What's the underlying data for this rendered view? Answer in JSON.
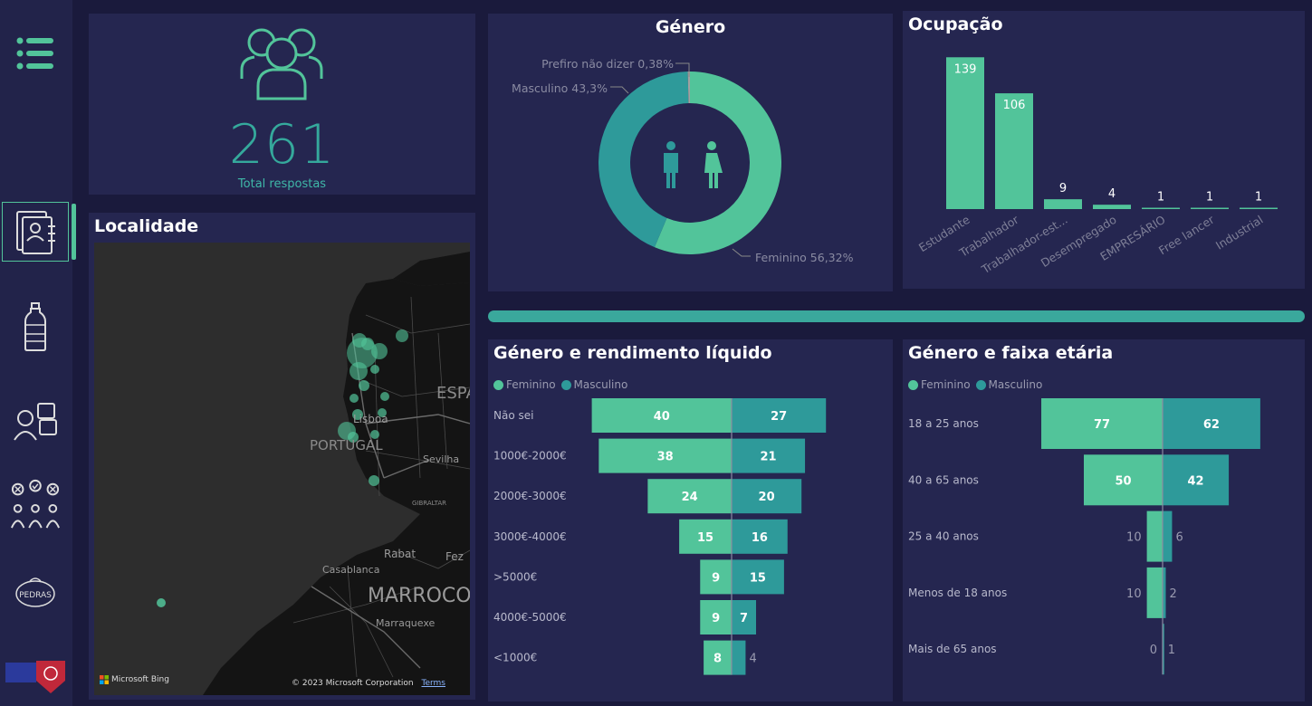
{
  "sidebar": {
    "items": [
      {
        "name": "menu"
      },
      {
        "name": "profile-report",
        "active": true
      },
      {
        "name": "bottle"
      },
      {
        "name": "feedback"
      },
      {
        "name": "voting"
      },
      {
        "name": "pedras-logo",
        "logo_text": "PEDRAS"
      },
      {
        "name": "brand-logo"
      }
    ]
  },
  "kpi": {
    "value": "261",
    "label": "Total respostas"
  },
  "localidade": {
    "title": "Localidade",
    "map_labels": [
      "ESPA",
      "Lisboa",
      "PORTUGAL",
      "Sevilha",
      "GIBRALTAR",
      "Rabat",
      "Fez",
      "Casablanca",
      "MARROCOS",
      "Marraquexe"
    ],
    "credit_bing": "Microsoft Bing",
    "credit_copyright": "© 2023 Microsoft Corporation",
    "credit_terms": "Terms"
  },
  "genero": {
    "title": "Género",
    "slices": [
      {
        "label": "Feminino 56,32%",
        "value": 56.32,
        "color": "#52c49a"
      },
      {
        "label": "Masculino 43,3%",
        "value": 43.3,
        "color": "#2e9a9a"
      },
      {
        "label": "Prefiro não dizer 0,38%",
        "value": 0.38,
        "color": "#a0a0a0"
      }
    ]
  },
  "ocupacao": {
    "title": "Ocupação",
    "categories": [
      "Estudante",
      "Trabalhador",
      "Trabalhador-est...",
      "Desempregado",
      "EMPRESÁRIO",
      "Free lancer",
      "Industrial"
    ],
    "values": [
      139,
      106,
      9,
      4,
      1,
      1,
      1
    ]
  },
  "rendimento": {
    "title": "Género e rendimento líquido",
    "legend": [
      "Feminino",
      "Masculino"
    ],
    "rows": [
      {
        "label": "Não sei",
        "f": 40,
        "m": 27
      },
      {
        "label": "1000€-2000€",
        "f": 38,
        "m": 21
      },
      {
        "label": "2000€-3000€",
        "f": 24,
        "m": 20
      },
      {
        "label": "3000€-4000€",
        "f": 15,
        "m": 16
      },
      {
        "label": ">5000€",
        "f": 9,
        "m": 15
      },
      {
        "label": "4000€-5000€",
        "f": 9,
        "m": 7
      },
      {
        "label": "<1000€",
        "f": 8,
        "m": 4
      }
    ]
  },
  "faixa": {
    "title": "Género e faixa etária",
    "legend": [
      "Feminino",
      "Masculino"
    ],
    "rows": [
      {
        "label": "18 a 25 anos",
        "f": 77,
        "m": 62
      },
      {
        "label": "40 a 65 anos",
        "f": 50,
        "m": 42
      },
      {
        "label": "25 a 40 anos",
        "f": 10,
        "m": 6
      },
      {
        "label": "Menos de 18 anos",
        "f": 10,
        "m": 2
      },
      {
        "label": "Mais de 65 anos",
        "f": 0,
        "m": 1
      }
    ]
  },
  "colors": {
    "feminino": "#52c49a",
    "masculino": "#2e9a9a",
    "panel": "#252650",
    "accent": "#3aa89c"
  }
}
